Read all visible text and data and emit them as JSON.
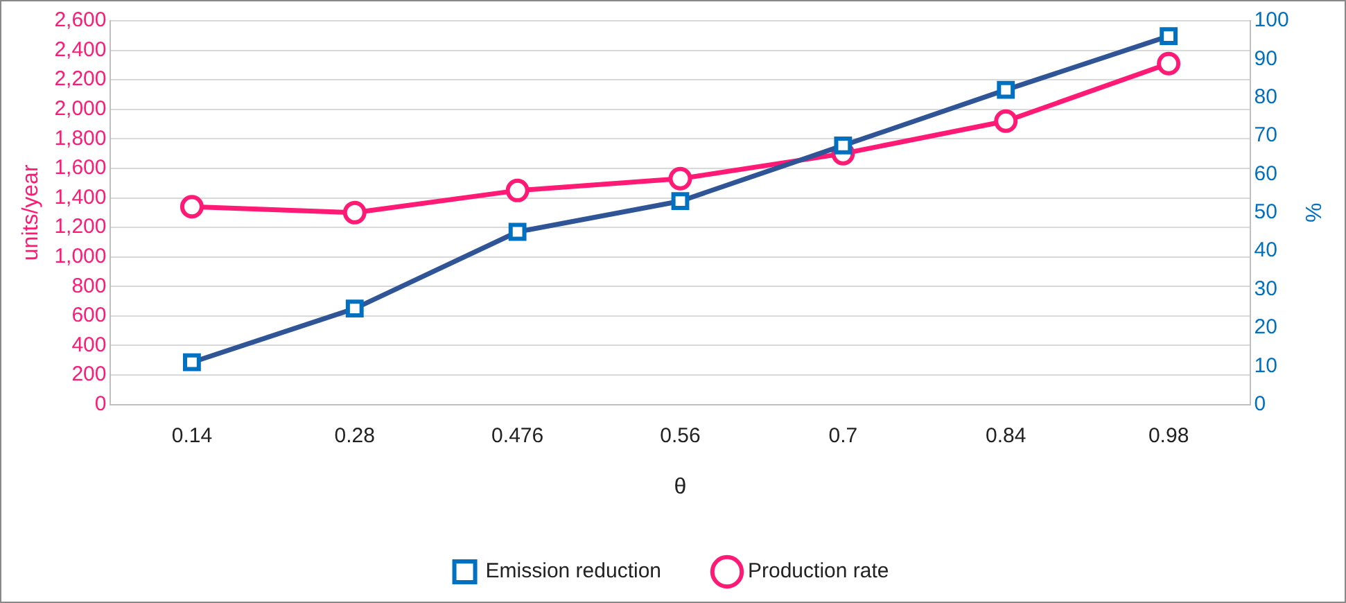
{
  "chart_data": {
    "type": "line",
    "xlabel": "θ",
    "ylabel": "units/year",
    "y2label": "%",
    "categories": [
      "0.14",
      "0.28",
      "0.476",
      "0.56",
      "0.7",
      "0.84",
      "0.98"
    ],
    "series": [
      {
        "name": "Production rate",
        "color": "#ff1a75",
        "marker": "circle",
        "values": [
          1340,
          1300,
          1450,
          1530,
          1700,
          1920,
          2310
        ]
      },
      {
        "name": "Emission reduction",
        "color": "#2f5597",
        "marker": "square",
        "axis": "y2",
        "values": [
          11,
          25,
          45,
          53,
          67.5,
          82,
          96
        ]
      }
    ],
    "ylim": [
      0,
      2600
    ],
    "yticks": [
      0,
      {
        "value": 200,
        "label": "200"
      },
      400,
      600,
      800,
      {
        "value": 1000,
        "label": "1,000"
      },
      {
        "value": 1200,
        "label": "1,200"
      },
      {
        "value": 1400,
        "label": "1,400"
      },
      {
        "value": 1600,
        "label": "1,600"
      },
      {
        "value": 1800,
        "label": "1,800"
      },
      {
        "value": 2000,
        "label": "2,000"
      },
      {
        "value": 2200,
        "label": "2,200"
      },
      {
        "value": 2400,
        "label": "2,400"
      },
      {
        "value": 2600,
        "label": "2,600"
      }
    ],
    "y2lim": [
      0,
      100
    ],
    "y2ticks": [
      0,
      10,
      20,
      30,
      40,
      50,
      60,
      70,
      80,
      90,
      100
    ],
    "grid": "y",
    "legend": "bottom",
    "line_style": "solid"
  }
}
